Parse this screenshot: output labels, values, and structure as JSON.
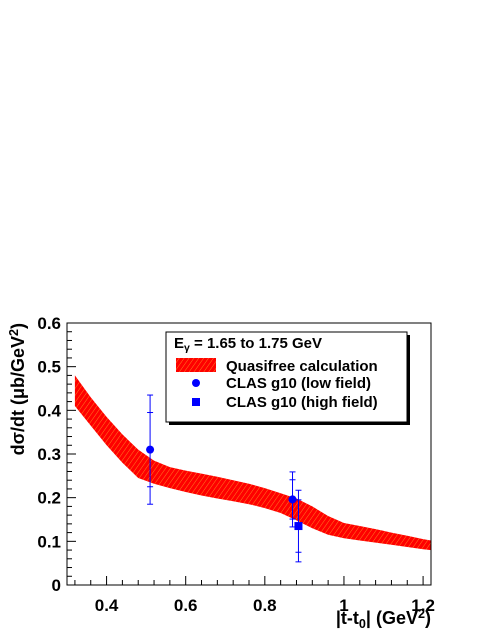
{
  "chart_data": {
    "type": "scatter",
    "xlabel": "|t-t0| (GeV2)",
    "xlabel_parts": [
      "|t-t",
      "0",
      "| (GeV",
      "2",
      ")"
    ],
    "ylabel": "dσ/dt (μb/GeV2)",
    "ylabel_parts": [
      "dσ/dt (μb/GeV",
      "2",
      ")"
    ],
    "xlim": [
      0.3,
      1.22
    ],
    "ylim": [
      0,
      0.6
    ],
    "xticks": [
      0.4,
      0.6,
      0.8,
      1,
      1.2
    ],
    "xtick_labels": [
      "0.4",
      "0.6",
      "0.8",
      "1",
      "1.2"
    ],
    "yticks": [
      0,
      0.1,
      0.2,
      0.3,
      0.4,
      0.5,
      0.6
    ],
    "ytick_labels": [
      "0",
      "0.1",
      "0.2",
      "0.3",
      "0.4",
      "0.5",
      "0.6"
    ],
    "grid": false,
    "legend_position": "top-right",
    "legend_header": "Eγ = 1.65 to 1.75 GeV",
    "legend_header_parts": [
      "E",
      "γ",
      " =  1.65 to 1.75 GeV"
    ],
    "band": {
      "name": "Quasifree calculation",
      "color": "#ff0000",
      "x": [
        0.32,
        0.36,
        0.4,
        0.44,
        0.48,
        0.52,
        0.56,
        0.6,
        0.64,
        0.68,
        0.72,
        0.76,
        0.8,
        0.84,
        0.88,
        0.92,
        0.96,
        1.0,
        1.04,
        1.08,
        1.12,
        1.16,
        1.2,
        1.22
      ],
      "upper": [
        0.48,
        0.43,
        0.385,
        0.345,
        0.31,
        0.285,
        0.27,
        0.262,
        0.255,
        0.248,
        0.24,
        0.232,
        0.222,
        0.21,
        0.198,
        0.18,
        0.158,
        0.142,
        0.135,
        0.128,
        0.12,
        0.113,
        0.105,
        0.102
      ],
      "lower": [
        0.41,
        0.365,
        0.32,
        0.28,
        0.245,
        0.232,
        0.222,
        0.213,
        0.205,
        0.198,
        0.192,
        0.185,
        0.176,
        0.165,
        0.148,
        0.13,
        0.115,
        0.107,
        0.102,
        0.097,
        0.092,
        0.087,
        0.082,
        0.08
      ]
    },
    "series": [
      {
        "name": "CLAS g10 (low field)",
        "marker": "circle",
        "color": "#0000ff",
        "points": [
          {
            "x": 0.51,
            "y": 0.31,
            "err_low": 0.125,
            "err_high": 0.125,
            "stat_low": 0.085,
            "stat_high": 0.085
          },
          {
            "x": 0.87,
            "y": 0.196,
            "err_low": 0.063,
            "err_high": 0.063,
            "stat_low": 0.045,
            "stat_high": 0.045
          }
        ]
      },
      {
        "name": "CLAS g10 (high field)",
        "marker": "square",
        "color": "#0000ff",
        "points": [
          {
            "x": 0.885,
            "y": 0.135,
            "err_low": 0.082,
            "err_high": 0.082,
            "stat_low": 0.06,
            "stat_high": 0.06
          }
        ]
      }
    ]
  }
}
